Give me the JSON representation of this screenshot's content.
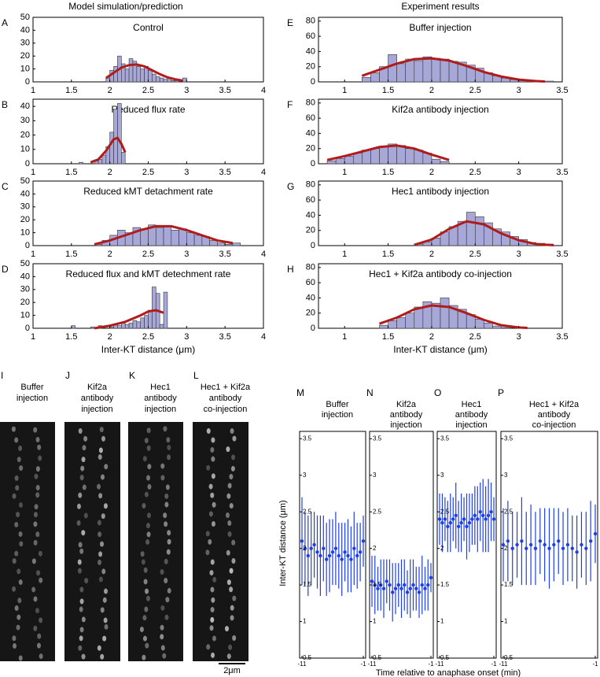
{
  "headers": {
    "left": "Model  simulation/prediction",
    "right": "Experiment results"
  },
  "chart_data": [
    {
      "type": "histogram",
      "panel": "A",
      "title": "Control",
      "color": "#a8a8d8",
      "bins": [
        1.95,
        2,
        2.05,
        2.1,
        2.15,
        2.2,
        2.25,
        2.3,
        2.35,
        2.4,
        2.45,
        2.5,
        2.55,
        2.6,
        2.65,
        2.7,
        2.75,
        2.8,
        2.85,
        2.9,
        2.95,
        3
      ],
      "values": [
        3,
        9,
        12,
        20,
        14,
        10,
        18,
        16,
        12,
        10,
        12,
        9,
        6,
        4,
        3,
        2,
        3,
        1,
        1,
        0,
        3
      ],
      "fit": {
        "color": "#b01c1c",
        "x": [
          1.95,
          2.05,
          2.15,
          2.25,
          2.35,
          2.45,
          2.55,
          2.65,
          2.75,
          2.85,
          2.95
        ],
        "y": [
          3,
          7,
          11,
          13,
          13.5,
          12,
          9,
          6,
          3.5,
          2,
          1
        ]
      },
      "xlim": [
        1,
        4
      ],
      "ylim": [
        0,
        50
      ],
      "xticks": [
        1,
        1.5,
        2,
        2.5,
        3,
        3.5,
        4
      ],
      "yticks": [
        0,
        10,
        20,
        30,
        40,
        50
      ]
    },
    {
      "type": "histogram",
      "panel": "B",
      "title": "Reduced flux rate",
      "color": "#a8a8d8",
      "bins": [
        1.6,
        1.65,
        1.7,
        1.75,
        1.8,
        1.85,
        1.9,
        1.95,
        2,
        2.05,
        2.1,
        2.15,
        2.2
      ],
      "values": [
        1,
        0,
        0,
        0,
        2,
        3,
        6,
        12,
        22,
        38,
        42,
        8
      ],
      "fit": {
        "color": "#b01c1c",
        "x": [
          1.75,
          1.85,
          1.95,
          2,
          2.05,
          2.1,
          2.15,
          2.2
        ],
        "y": [
          1,
          3,
          9,
          13,
          17,
          18,
          14,
          8
        ]
      },
      "xlim": [
        1,
        4
      ],
      "ylim": [
        0,
        45
      ],
      "xticks": [
        1,
        1.5,
        2,
        2.5,
        3,
        3.5,
        4
      ],
      "yticks": [
        0,
        10,
        20,
        30,
        40
      ]
    },
    {
      "type": "histogram",
      "panel": "C",
      "title": "Reduced kMT detachment rate",
      "color": "#a8a8d8",
      "bins": [
        1.8,
        1.9,
        2,
        2.1,
        2.2,
        2.3,
        2.4,
        2.5,
        2.6,
        2.7,
        2.8,
        2.9,
        3,
        3.1,
        3.2,
        3.3,
        3.4,
        3.5,
        3.6,
        3.7
      ],
      "values": [
        1,
        4,
        8,
        12,
        10,
        14,
        13,
        16,
        14,
        15,
        12,
        13,
        10,
        8,
        7,
        4,
        2,
        1,
        2
      ],
      "fit": {
        "color": "#b01c1c",
        "x": [
          1.8,
          2,
          2.2,
          2.4,
          2.6,
          2.8,
          3,
          3.2,
          3.4,
          3.6
        ],
        "y": [
          1,
          4,
          8,
          12,
          15,
          15,
          12,
          8,
          4,
          2
        ]
      },
      "xlim": [
        1,
        4
      ],
      "ylim": [
        0,
        50
      ],
      "xticks": [
        1,
        1.5,
        2,
        2.5,
        3,
        3.5,
        4
      ],
      "yticks": [
        0,
        10,
        20,
        30,
        40,
        50
      ]
    },
    {
      "type": "histogram",
      "panel": "D",
      "title": "Reduced flux and kMT detechment rate",
      "color": "#a8a8d8",
      "x_label": "Inter-KT distance (μm)",
      "bins": [
        1.5,
        1.55,
        1.6,
        1.65,
        1.7,
        1.75,
        1.8,
        1.85,
        1.9,
        1.95,
        2,
        2.05,
        2.1,
        2.15,
        2.2,
        2.25,
        2.3,
        2.35,
        2.4,
        2.45,
        2.5,
        2.55,
        2.6,
        2.65,
        2.7,
        2.75
      ],
      "values": [
        2,
        0,
        0,
        0,
        0,
        1,
        0,
        2,
        0,
        0,
        1,
        3,
        2,
        4,
        3,
        4,
        6,
        5,
        8,
        10,
        14,
        32,
        27,
        3,
        28
      ],
      "fit": {
        "color": "#b01c1c",
        "x": [
          1.8,
          2,
          2.2,
          2.4,
          2.5,
          2.6,
          2.7
        ],
        "y": [
          0,
          2,
          5,
          10,
          13,
          14,
          12
        ]
      },
      "xlim": [
        1,
        4
      ],
      "ylim": [
        0,
        50
      ],
      "xticks": [
        1,
        1.5,
        2,
        2.5,
        3,
        3.5,
        4
      ],
      "yticks": [
        0,
        10,
        20,
        30,
        40,
        50
      ]
    },
    {
      "type": "histogram",
      "panel": "E",
      "title": "Buffer injection",
      "color": "#a8a8d8",
      "bins": [
        1.2,
        1.3,
        1.4,
        1.5,
        1.6,
        1.7,
        1.8,
        1.9,
        2,
        2.1,
        2.2,
        2.3,
        2.4,
        2.5,
        2.6,
        2.7,
        2.8,
        2.9,
        3,
        3.1,
        3.2,
        3.3,
        3.4
      ],
      "values": [
        6,
        12,
        20,
        36,
        24,
        30,
        28,
        33,
        31,
        30,
        27,
        26,
        22,
        18,
        12,
        8,
        5,
        3,
        2,
        1,
        0,
        1
      ],
      "fit": {
        "color": "#b01c1c",
        "x": [
          1.2,
          1.4,
          1.6,
          1.8,
          2,
          2.2,
          2.4,
          2.6,
          2.8,
          3,
          3.2,
          3.3
        ],
        "y": [
          8,
          16,
          24,
          30,
          31,
          28,
          21,
          13,
          7,
          3,
          1,
          0.5
        ]
      },
      "xlim": [
        0.7,
        3.5
      ],
      "ylim": [
        0,
        85
      ],
      "xticks": [
        1,
        1.5,
        2,
        2.5,
        3,
        3.5
      ],
      "yticks": [
        0,
        20,
        40,
        60,
        80
      ]
    },
    {
      "type": "histogram",
      "panel": "F",
      "title": "Kif2a antibody injection",
      "color": "#a8a8d8",
      "bins": [
        0.8,
        0.9,
        1,
        1.1,
        1.2,
        1.3,
        1.4,
        1.5,
        1.6,
        1.7,
        1.8,
        1.9,
        2,
        2.1,
        2.2
      ],
      "values": [
        4,
        7,
        10,
        14,
        18,
        20,
        22,
        26,
        24,
        20,
        18,
        14,
        6,
        3
      ],
      "fit": {
        "color": "#b01c1c",
        "x": [
          0.8,
          1,
          1.2,
          1.4,
          1.6,
          1.8,
          2,
          2.2
        ],
        "y": [
          5,
          10,
          16,
          22,
          24,
          20,
          12,
          5
        ]
      },
      "xlim": [
        0.7,
        3.5
      ],
      "ylim": [
        0,
        85
      ],
      "xticks": [
        1,
        1.5,
        2,
        2.5,
        3,
        3.5
      ],
      "yticks": [
        0,
        20,
        40,
        60,
        80
      ]
    },
    {
      "type": "histogram",
      "panel": "G",
      "title": "Hec1 antibody injection",
      "color": "#a8a8d8",
      "bins": [
        1.8,
        1.9,
        2,
        2.1,
        2.2,
        2.3,
        2.4,
        2.5,
        2.6,
        2.7,
        2.8,
        2.9,
        3,
        3.1,
        3.2,
        3.3,
        3.4
      ],
      "values": [
        2,
        5,
        10,
        18,
        25,
        32,
        44,
        38,
        30,
        22,
        18,
        12,
        8,
        4,
        3,
        2
      ],
      "fit": {
        "color": "#b01c1c",
        "x": [
          1.8,
          2,
          2.2,
          2.4,
          2.6,
          2.8,
          3,
          3.2,
          3.4
        ],
        "y": [
          1,
          8,
          22,
          32,
          28,
          16,
          7,
          2,
          0.5
        ]
      },
      "xlim": [
        0.7,
        3.5
      ],
      "ylim": [
        0,
        85
      ],
      "xticks": [
        1,
        1.5,
        2,
        2.5,
        3,
        3.5
      ],
      "yticks": [
        0,
        20,
        40,
        60,
        80
      ]
    },
    {
      "type": "histogram",
      "panel": "H",
      "title": "Hec1 + Kif2a antibody co-injection",
      "color": "#a8a8d8",
      "x_label": "Inter-KT distance (μm)",
      "bins": [
        1.4,
        1.5,
        1.6,
        1.7,
        1.8,
        1.9,
        2,
        2.1,
        2.2,
        2.3,
        2.4,
        2.5,
        2.6,
        2.7,
        2.8,
        2.9
      ],
      "values": [
        4,
        10,
        14,
        20,
        28,
        35,
        33,
        40,
        30,
        25,
        18,
        12,
        7,
        3,
        1
      ],
      "fit": {
        "color": "#b01c1c",
        "x": [
          1.4,
          1.6,
          1.8,
          2,
          2.2,
          2.4,
          2.6,
          2.8,
          3,
          3.1
        ],
        "y": [
          6,
          14,
          25,
          30,
          28,
          20,
          11,
          4,
          1,
          0.5
        ]
      },
      "xlim": [
        0.7,
        3.5
      ],
      "ylim": [
        0,
        85
      ],
      "xticks": [
        1,
        1.5,
        2,
        2.5,
        3,
        3.5
      ],
      "yticks": [
        0,
        20,
        40,
        60,
        80
      ]
    },
    {
      "type": "errorbar",
      "panel": "M",
      "title": [
        "Buffer",
        "injection"
      ],
      "color": "#1f3fe6",
      "x": [
        -11,
        -10.5,
        -10,
        -9.5,
        -9,
        -8.5,
        -8,
        -7.5,
        -7,
        -6.5,
        -6,
        -5.5,
        -5,
        -4.5,
        -4,
        -3.5,
        -3,
        -2.5,
        -2,
        -1.5,
        -1
      ],
      "values": [
        2.1,
        2.0,
        1.9,
        2.0,
        2.05,
        1.95,
        1.9,
        2.0,
        1.85,
        1.9,
        1.95,
        2.0,
        1.9,
        1.85,
        1.95,
        1.9,
        1.85,
        2.0,
        1.9,
        1.95,
        2.1
      ],
      "errors": [
        0.6,
        0.5,
        0.55,
        0.5,
        0.45,
        0.5,
        0.55,
        0.45,
        0.5,
        0.5,
        0.45,
        0.5,
        0.45,
        0.5,
        0.4,
        0.5,
        0.45,
        0.5,
        0.45,
        0.4,
        0.35
      ],
      "xlim": [
        -11,
        -1
      ],
      "ylim": [
        0.5,
        3.6
      ],
      "xticks": [
        -11,
        -1
      ],
      "yticks": [
        0.5,
        1,
        1.5,
        2,
        2.5,
        3,
        3.5
      ]
    },
    {
      "type": "errorbar",
      "panel": "N",
      "title": [
        "Kif2a",
        "antibody",
        "injection"
      ],
      "color": "#1f3fe6",
      "x": [
        -11,
        -10.5,
        -10,
        -9.5,
        -9,
        -8.5,
        -8,
        -7.5,
        -7,
        -6.5,
        -6,
        -5.5,
        -5,
        -4.5,
        -4,
        -3.5,
        -3,
        -2.5,
        -2,
        -1.5,
        -1
      ],
      "values": [
        1.55,
        1.5,
        1.45,
        1.5,
        1.45,
        1.55,
        1.5,
        1.4,
        1.45,
        1.5,
        1.45,
        1.5,
        1.4,
        1.45,
        1.5,
        1.45,
        1.4,
        1.5,
        1.45,
        1.5,
        1.6
      ],
      "errors": [
        0.35,
        0.4,
        0.3,
        0.35,
        0.4,
        0.3,
        0.35,
        0.4,
        0.35,
        0.3,
        0.4,
        0.35,
        0.3,
        0.4,
        0.35,
        0.3,
        0.35,
        0.4,
        0.3,
        0.35,
        0.2
      ],
      "xlim": [
        -11,
        -1
      ],
      "ylim": [
        0.5,
        3.6
      ],
      "xticks": [
        -11,
        -1
      ],
      "yticks": [
        0.5,
        1,
        1.5,
        2,
        2.5,
        3,
        3.5
      ]
    },
    {
      "type": "errorbar",
      "panel": "O",
      "title": [
        "Hec1",
        "antibody",
        "injection"
      ],
      "color": "#1f3fe6",
      "x": [
        -11,
        -10.5,
        -10,
        -9.5,
        -9,
        -8.5,
        -8,
        -7.5,
        -7,
        -6.5,
        -6,
        -5.5,
        -5,
        -4.5,
        -4,
        -3.5,
        -3,
        -2.5,
        -2,
        -1.5,
        -1
      ],
      "values": [
        2.4,
        2.35,
        2.4,
        2.3,
        2.35,
        2.4,
        2.45,
        2.3,
        2.35,
        2.4,
        2.3,
        2.35,
        2.4,
        2.45,
        2.4,
        2.5,
        2.45,
        2.4,
        2.45,
        2.5,
        2.4
      ],
      "errors": [
        0.35,
        0.4,
        0.3,
        0.35,
        0.4,
        0.3,
        0.45,
        0.35,
        0.4,
        0.3,
        0.45,
        0.4,
        0.35,
        0.4,
        0.45,
        0.4,
        0.5,
        0.45,
        0.5,
        0.4,
        0.3
      ],
      "xlim": [
        -11,
        -1
      ],
      "ylim": [
        0.5,
        3.6
      ],
      "xticks": [
        -11,
        -1
      ],
      "yticks": [
        0.5,
        1,
        1.5,
        2,
        2.5,
        3,
        3.5
      ]
    },
    {
      "type": "errorbar",
      "panel": "P",
      "title": [
        "Hec1 + Kif2a",
        "antibody",
        "co-injection"
      ],
      "color": "#1f3fe6",
      "x": [
        -11,
        -10.5,
        -10,
        -9.5,
        -9,
        -8.5,
        -8,
        -7.5,
        -7,
        -6.5,
        -6,
        -5.5,
        -5,
        -4.5,
        -4,
        -3.5,
        -3,
        -2.5,
        -2,
        -1.5,
        -1
      ],
      "values": [
        2.05,
        2.1,
        2.0,
        2.05,
        2.1,
        2.0,
        2.05,
        2.0,
        2.1,
        2.05,
        2.0,
        2.05,
        2.1,
        2.0,
        2.05,
        2.0,
        1.95,
        2.05,
        2.0,
        2.1,
        2.2
      ],
      "errors": [
        0.5,
        0.55,
        0.5,
        0.45,
        0.6,
        0.5,
        0.55,
        0.5,
        0.45,
        0.5,
        0.55,
        0.5,
        0.45,
        0.5,
        0.5,
        0.45,
        0.5,
        0.45,
        0.5,
        0.55,
        0.4
      ],
      "xlim": [
        -11,
        -1
      ],
      "ylim": [
        0.5,
        3.6
      ],
      "xticks": [
        -11,
        -1
      ],
      "yticks": [
        0.5,
        1,
        1.5,
        2,
        2.5,
        3,
        3.5
      ]
    }
  ],
  "errorbar_axes": {
    "y_label": "Inter-KT distance (μm)",
    "x_label": "Time relative to anaphase onset (min)"
  },
  "kymographs": [
    {
      "panel": "I",
      "title": [
        "Buffer",
        "injection"
      ]
    },
    {
      "panel": "J",
      "title": [
        "Kif2a",
        "antibody",
        "injection"
      ]
    },
    {
      "panel": "K",
      "title": [
        "Hec1",
        "antibody",
        "injection"
      ]
    },
    {
      "panel": "L",
      "title": [
        "Hec1 + Kif2a",
        "antibody",
        "co-injection"
      ]
    }
  ],
  "scale_bar": "2μm"
}
